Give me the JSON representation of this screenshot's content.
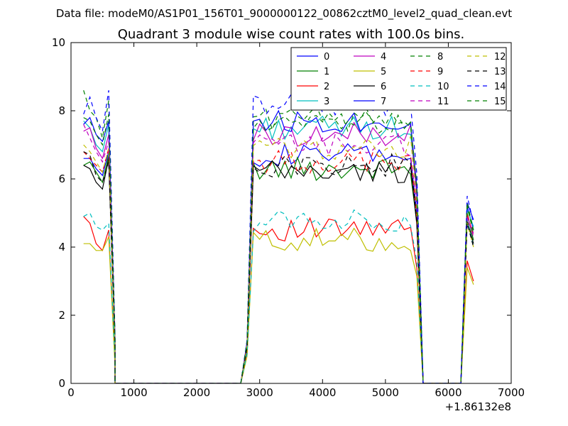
{
  "header": {
    "text": "Data file: modeM0/AS1P01_156T01_9000000122_00862cztM0_level2_quad_clean.evt"
  },
  "chart_data": {
    "type": "line",
    "title": "Quadrant 3 module wise count rates with 100.0s bins.",
    "xlabel": "",
    "ylabel": "",
    "xlim": [
      0,
      7000
    ],
    "ylim": [
      0,
      10
    ],
    "x_offset_label": "+1.86132e8",
    "x_ticks": [
      0,
      1000,
      2000,
      3000,
      4000,
      5000,
      6000,
      7000
    ],
    "x_tick_labels": [
      "0",
      "1000",
      "2000",
      "3000",
      "4000",
      "5000",
      "6000",
      "7000"
    ],
    "y_ticks": [
      0,
      2,
      4,
      6,
      8,
      10
    ],
    "y_tick_labels": [
      "0",
      "2",
      "4",
      "6",
      "8",
      "10"
    ],
    "grid": false,
    "legend_position": "top-right",
    "segments": [
      {
        "x_start": 200,
        "n": 6
      },
      {
        "x_start": 700,
        "n": 20,
        "constant": 0
      },
      {
        "x_start": 2700,
        "n": 1,
        "constant": 0
      },
      {
        "x_start": 2800,
        "n": 28
      },
      {
        "x_start": 5600,
        "n": 7,
        "constant": 0
      },
      {
        "x_start": 6300,
        "n": 2
      }
    ],
    "series": [
      {
        "name": "0",
        "color": "#0000ff",
        "dash": "solid",
        "level": 6.7,
        "early": [
          6.6,
          6.6,
          6.3,
          6.1,
          6.8,
          1.2
        ],
        "late": [
          5.2,
          4.5
        ]
      },
      {
        "name": "1",
        "color": "#008000",
        "dash": "solid",
        "level": 6.3,
        "early": [
          6.4,
          6.5,
          6.2,
          5.9,
          6.7,
          1.1
        ],
        "late": [
          5.0,
          4.2
        ]
      },
      {
        "name": "2",
        "color": "#ff0000",
        "dash": "solid",
        "level": 4.5,
        "early": [
          4.9,
          4.7,
          4.1,
          3.9,
          4.5,
          0.6
        ],
        "late": [
          3.6,
          3.0
        ]
      },
      {
        "name": "3",
        "color": "#00bfbf",
        "dash": "solid",
        "level": 7.5,
        "early": [
          7.7,
          7.5,
          7.0,
          6.8,
          7.6,
          1.3
        ],
        "late": [
          5.1,
          4.6
        ]
      },
      {
        "name": "4",
        "color": "#bf00bf",
        "dash": "solid",
        "level": 7.3,
        "early": [
          7.4,
          7.5,
          6.9,
          6.6,
          7.3,
          1.3
        ],
        "late": [
          4.9,
          4.4
        ]
      },
      {
        "name": "5",
        "color": "#bfbf00",
        "dash": "solid",
        "level": 4.2,
        "early": [
          4.1,
          4.1,
          3.9,
          3.9,
          4.3,
          0.5
        ],
        "late": [
          3.4,
          2.9
        ]
      },
      {
        "name": "6",
        "color": "#000000",
        "dash": "solid",
        "level": 6.2,
        "early": [
          6.4,
          6.3,
          5.9,
          5.7,
          6.6,
          1.1
        ],
        "late": [
          4.8,
          4.1
        ]
      },
      {
        "name": "7",
        "color": "#0000ff",
        "dash": "solid",
        "level": 7.7,
        "early": [
          7.6,
          7.8,
          7.3,
          7.1,
          7.7,
          1.3
        ],
        "late": [
          5.3,
          4.8
        ]
      },
      {
        "name": "8",
        "color": "#008000",
        "dash": "dashed",
        "level": 7.8,
        "early": [
          8.6,
          8.0,
          7.8,
          7.2,
          8.3,
          1.4
        ],
        "late": [
          5.2,
          4.4
        ]
      },
      {
        "name": "9",
        "color": "#ff0000",
        "dash": "dashed",
        "level": 6.5,
        "early": [
          6.8,
          6.6,
          6.4,
          6.2,
          6.9,
          1.2
        ],
        "late": [
          5.0,
          4.3
        ]
      },
      {
        "name": "10",
        "color": "#00bfbf",
        "dash": "dashed",
        "level": 4.8,
        "early": [
          4.9,
          5.0,
          4.6,
          4.5,
          4.7,
          0.7
        ],
        "late": [
          4.8,
          4.0
        ]
      },
      {
        "name": "11",
        "color": "#bf00bf",
        "dash": "dashed",
        "level": 7.0,
        "early": [
          7.6,
          7.2,
          6.8,
          6.5,
          7.1,
          1.2
        ],
        "late": [
          4.9,
          4.3
        ]
      },
      {
        "name": "12",
        "color": "#bfbf00",
        "dash": "dashed",
        "level": 6.9,
        "early": [
          7.0,
          6.8,
          6.5,
          6.2,
          6.9,
          1.2
        ],
        "late": [
          4.7,
          4.0
        ]
      },
      {
        "name": "13",
        "color": "#000000",
        "dash": "dashed",
        "level": 6.4,
        "early": [
          6.8,
          6.7,
          6.1,
          5.9,
          6.5,
          1.1
        ],
        "late": [
          4.7,
          4.0
        ]
      },
      {
        "name": "14",
        "color": "#0000ff",
        "dash": "dashed",
        "level": 8.2,
        "early": [
          7.9,
          8.4,
          7.8,
          7.4,
          8.6,
          1.4
        ],
        "late": [
          5.5,
          4.7
        ]
      },
      {
        "name": "15",
        "color": "#008000",
        "dash": "dashed",
        "level": 7.6,
        "early": [
          7.8,
          7.7,
          7.3,
          7.0,
          7.9,
          1.3
        ],
        "late": [
          5.3,
          4.5
        ]
      }
    ]
  }
}
